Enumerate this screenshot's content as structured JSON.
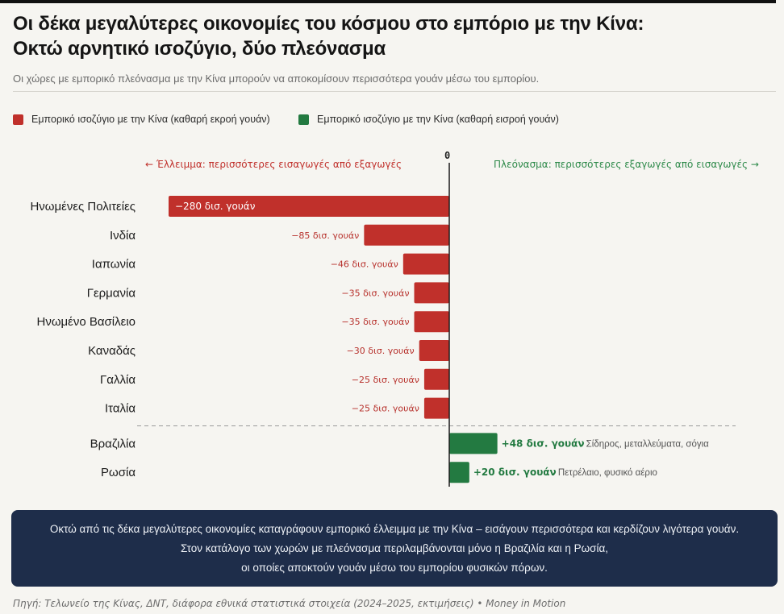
{
  "header": {
    "title_line1": "Οι δέκα μεγαλύτερες οικονομίες του κόσμου στο εμπόριο με την Κίνα:",
    "title_line2": "Οκτώ αρνητικό ισοζύγιο, δύο πλεόνασμα",
    "subtitle": "Οι χώρες με εμπορικό πλεόνασμα με την Κίνα μπορούν να αποκομίσουν περισσότερα γουάν μέσω του εμπορίου."
  },
  "legend": {
    "deficit": "Εμπορικό ισοζύγιο με την Κίνα (καθαρή εκροή γουάν)",
    "surplus": "Εμπορικό ισοζύγιο με την Κίνα (καθαρή εισροή γουάν)"
  },
  "hints": {
    "left": "←  Έλλειμμα: περισσότερες εισαγωγές από εξαγωγές",
    "right": "Πλεόνασμα: περισσότερες εξαγωγές από εισαγωγές  →",
    "zero": "0"
  },
  "colors": {
    "deficit": "#c0302b",
    "surplus": "#237a41",
    "axis": "#1a1a1a",
    "divider": "#9a9a9a"
  },
  "chart_data": {
    "type": "bar",
    "orientation": "horizontal",
    "categories": [
      "Ηνωμένες Πολιτείες",
      "Ινδία",
      "Ιαπωνία",
      "Γερμανία",
      "Ηνωμένο Βασίλειο",
      "Καναδάς",
      "Γαλλία",
      "Ιταλία",
      "Βραζιλία",
      "Ρωσία"
    ],
    "values": [
      -280,
      -85,
      -46,
      -35,
      -35,
      -30,
      -25,
      -25,
      48,
      20
    ],
    "value_labels": [
      "−280 δισ. γουάν",
      "−85 δισ. γουάν",
      "−46 δισ. γουάν",
      "−35 δισ. γουάν",
      "−35 δισ. γουάν",
      "−30 δισ. γουάν",
      "−25 δισ. γουάν",
      "−25 δισ. γουάν",
      "+48 δισ. γουάν",
      "+20 δισ. γουάν"
    ],
    "annotations": [
      "",
      "",
      "",
      "",
      "",
      "",
      "",
      "",
      "Σίδηρος, μεταλλεύματα, σόγια",
      "Πετρέλαιο, φυσικό αέριο"
    ],
    "xlim": [
      -280,
      48
    ],
    "grid": false,
    "legend_position": "top-left"
  },
  "summary": {
    "line1": "Οκτώ από τις δέκα μεγαλύτερες οικονομίες καταγράφουν εμπορικό έλλειμμα με την Κίνα – εισάγουν περισσότερα και κερδίζουν λιγότερα γουάν.",
    "line2": "Στον κατάλογο των χωρών με πλεόνασμα περιλαμβάνονται μόνο η Βραζιλία και η Ρωσία,",
    "line3": "οι οποίες αποκτούν γουάν μέσω του εμπορίου φυσικών πόρων."
  },
  "footer": {
    "source": "Πηγή: Τελωνείο της Κίνας, ΔΝΤ, διάφορα εθνικά στατιστικά στοιχεία (2024–2025, εκτιμήσεις)   •   Money in Motion"
  }
}
